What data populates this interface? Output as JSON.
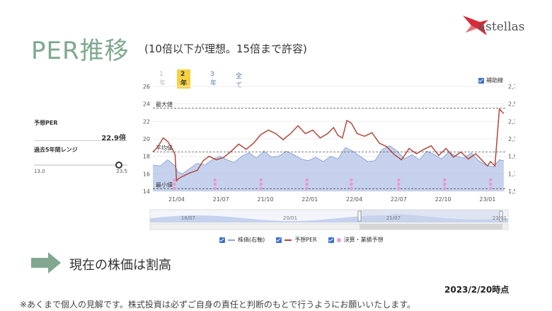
{
  "slide": {
    "title": "PER推移",
    "subtitle": "(10倍以下が理想。15倍まで許容)",
    "logo_text": "astellas",
    "message": "現在の株価は割高",
    "as_of": "2023/2/20時点",
    "disclaimer": "※あくまで個人の見解です。株式投資は必ずご自身の責任と判断のもとで行うようにお願いいたします。"
  },
  "tabs": [
    {
      "label": "1年",
      "state": "disabled"
    },
    {
      "label": "2年",
      "state": "active"
    },
    {
      "label": "3年",
      "state": "normal"
    },
    {
      "label": "全て",
      "state": "normal"
    }
  ],
  "aux_label": "補助線",
  "side_panel": {
    "forecast_per_label": "予想PER",
    "forecast_per_value": "22.9倍",
    "range_label": "過去5年間レンジ",
    "range_min": "13.0",
    "range_max": "23.5",
    "current_fraction": 0.945
  },
  "legend": {
    "price": "株価(右軸)",
    "per": "予想PER",
    "earnings": "決算・業績予想"
  },
  "colors": {
    "per_line": "#b0473b",
    "price_area": "#aebfe6",
    "price_line": "#8ea6d8",
    "earnings_dot": "#e79ad1",
    "title": "#7fa88f",
    "arrow": "#7fa88f",
    "active_tab": "#f5d142",
    "checkbox": "#3b6fc9"
  },
  "chart_data": {
    "type": "line",
    "x_tick_labels": [
      "21/04",
      "21/07",
      "21/10",
      "22/01",
      "22/04",
      "22/07",
      "22/10",
      "23/01"
    ],
    "y_left_ticks": [
      "14",
      "16",
      "18",
      "20",
      "22",
      "24",
      "26"
    ],
    "y_left_range": [
      14,
      26
    ],
    "y_right_ticks": [
      "1,500",
      "1,700",
      "1,900",
      "2,100",
      "2,300",
      "2,500",
      "2,700"
    ],
    "y_right_range": [
      1500,
      2700
    ],
    "reference_lines": [
      {
        "label": "最大値",
        "value": 23.5
      },
      {
        "label": "平均値",
        "value": 18.5
      },
      {
        "label": "最小値",
        "value": 14.3
      }
    ],
    "series": [
      {
        "name": "予想PER",
        "axis": "left",
        "x": [
          0,
          0.3,
          0.7,
          1.0,
          1.3,
          1.5,
          1.6,
          1.7,
          2.0,
          2.5,
          3.0,
          3.4,
          3.8,
          4.3,
          4.8,
          5.3,
          5.8,
          6.3,
          6.8,
          7.3,
          7.8,
          8.3,
          8.8,
          9.0,
          9.3,
          9.8,
          10.3,
          10.8,
          11.3,
          11.8,
          12.2,
          12.5,
          12.8,
          13.1,
          13.4,
          13.8,
          14.3,
          14.8,
          15.3,
          15.8,
          16.3,
          16.8,
          17.3,
          17.8,
          18.3,
          18.8,
          19.3,
          19.8,
          20.3,
          20.8,
          21.3,
          21.8,
          22.2,
          22.6,
          22.8,
          23.1,
          23.4,
          23.7
        ],
        "values": [
          18.5,
          19.0,
          20.1,
          19.7,
          18.9,
          18.2,
          15.2,
          15.4,
          15.7,
          16.1,
          16.4,
          17.5,
          18.0,
          17.6,
          17.9,
          18.6,
          19.4,
          18.8,
          19.5,
          20.5,
          21.0,
          20.6,
          19.9,
          20.2,
          20.6,
          21.5,
          20.6,
          21.0,
          20.1,
          20.6,
          21.3,
          20.4,
          20.1,
          22.1,
          21.8,
          20.6,
          20.3,
          20.7,
          19.5,
          19.1,
          18.2,
          17.6,
          18.9,
          18.3,
          18.8,
          19.2,
          18.1,
          18.9,
          17.9,
          18.5,
          17.7,
          18.3,
          17.6,
          16.9,
          17.4,
          16.9,
          23.4,
          22.9
        ]
      },
      {
        "name": "株価(右軸)",
        "axis": "right",
        "x": [
          0,
          0.5,
          1.0,
          1.5,
          1.7,
          2.0,
          2.5,
          3.0,
          3.5,
          4.0,
          4.5,
          5.0,
          5.5,
          6.0,
          6.5,
          7.0,
          7.5,
          8.0,
          8.5,
          9.0,
          9.5,
          10.0,
          10.5,
          11.0,
          11.5,
          12.0,
          12.5,
          13.0,
          13.5,
          14.0,
          14.5,
          15.0,
          15.5,
          16.0,
          16.5,
          17.0,
          17.5,
          18.0,
          18.5,
          19.0,
          19.5,
          20.0,
          20.5,
          21.0,
          21.5,
          22.0,
          22.5,
          23.0,
          23.4,
          23.7
        ],
        "values": [
          1800,
          1790,
          1860,
          1790,
          1720,
          1700,
          1760,
          1820,
          1800,
          1860,
          1900,
          1860,
          1830,
          1900,
          1940,
          1880,
          1960,
          1890,
          1900,
          1960,
          1920,
          1870,
          1850,
          1890,
          1840,
          1900,
          1870,
          2000,
          1960,
          1900,
          1840,
          1850,
          1980,
          2020,
          1960,
          1870,
          1920,
          1860,
          1960,
          1920,
          1870,
          1950,
          1900,
          1880,
          1940,
          1850,
          1800,
          1780,
          1860,
          1850
        ]
      }
    ],
    "earnings_markers_x": [
      1.45,
      4.2,
      7.3,
      10.4,
      13.4,
      16.6,
      19.7,
      22.8
    ]
  }
}
